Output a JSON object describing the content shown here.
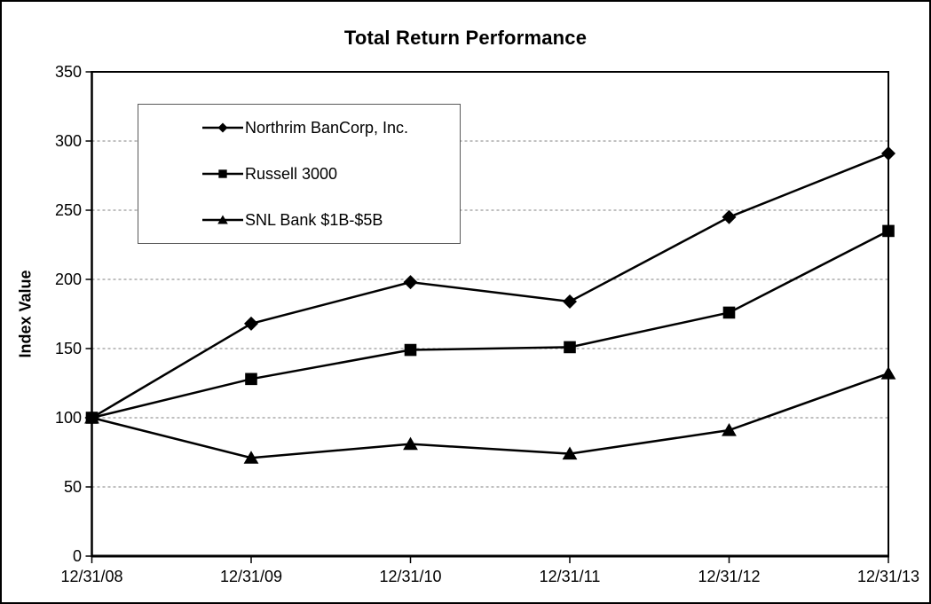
{
  "chart_data": {
    "type": "line",
    "title": "Total Return Performance",
    "xlabel": "",
    "ylabel": "Index Value",
    "categories": [
      "12/31/08",
      "12/31/09",
      "12/31/10",
      "12/31/11",
      "12/31/12",
      "12/31/13"
    ],
    "series": [
      {
        "name": "Northrim BanCorp, Inc.",
        "marker": "diamond",
        "values": [
          100,
          168,
          198,
          184,
          245,
          291
        ]
      },
      {
        "name": "Russell 3000",
        "marker": "square",
        "values": [
          100,
          128,
          149,
          151,
          176,
          235
        ]
      },
      {
        "name": "SNL Bank $1B-$5B",
        "marker": "triangle",
        "values": [
          100,
          71,
          81,
          74,
          91,
          132
        ]
      }
    ],
    "ylim": [
      0,
      350
    ],
    "yticks": [
      0,
      50,
      100,
      150,
      200,
      250,
      300,
      350
    ],
    "ytick_interval": 50,
    "grid": "horizontal-dashed",
    "legend_position": "upper-left-inside",
    "line_color": "#000000",
    "gridline_color": "#808080",
    "background_color": "#ffffff"
  }
}
